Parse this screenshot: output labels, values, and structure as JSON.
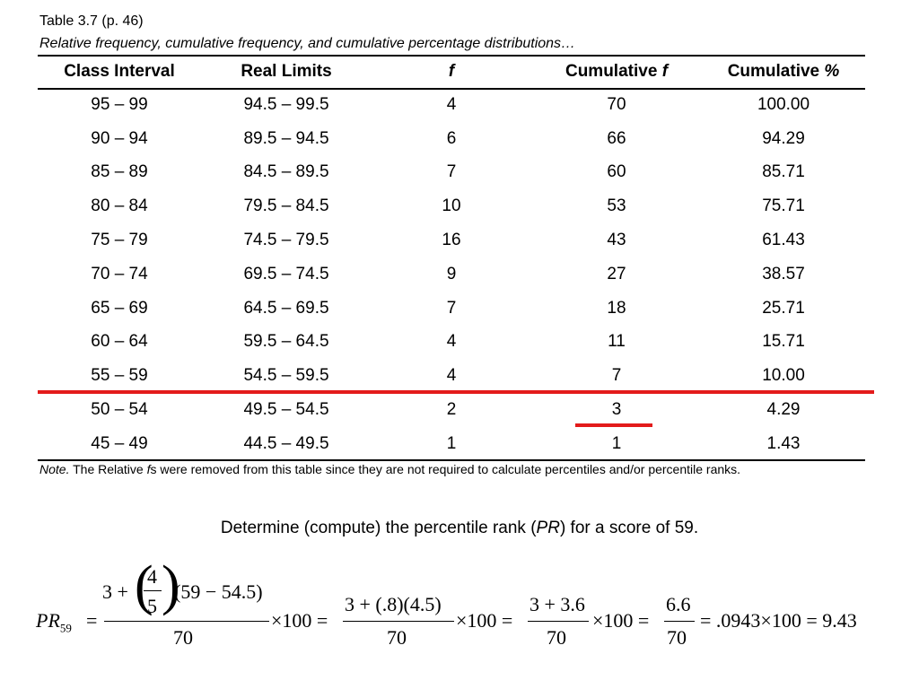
{
  "caption": {
    "title": "Table 3.7 (p. 46)",
    "subtitle": "Relative frequency, cumulative frequency, and cumulative percentage distributions…"
  },
  "table": {
    "headers": {
      "class_interval": "Class Interval",
      "real_limits": "Real Limits",
      "f": "f",
      "cumulative_f_word": "Cumulative",
      "cumulative_f_symbol": "f",
      "cumulative_pct_word": "Cumulative",
      "cumulative_pct_symbol": "%"
    },
    "rows": [
      [
        "95 – 99",
        "94.5 – 99.5",
        "4",
        "70",
        "100.00"
      ],
      [
        "90 – 94",
        "89.5 – 94.5",
        "6",
        "66",
        "94.29"
      ],
      [
        "85 – 89",
        "84.5 – 89.5",
        "7",
        "60",
        "85.71"
      ],
      [
        "80 – 84",
        "79.5 – 84.5",
        "10",
        "53",
        "75.71"
      ],
      [
        "75 – 79",
        "74.5 – 79.5",
        "16",
        "43",
        "61.43"
      ],
      [
        "70 – 74",
        "69.5 – 74.5",
        "9",
        "27",
        "38.57"
      ],
      [
        "65 – 69",
        "64.5 – 69.5",
        "7",
        "18",
        "25.71"
      ],
      [
        "60 – 64",
        "59.5 – 64.5",
        "4",
        "11",
        "15.71"
      ],
      [
        "55 – 59",
        "54.5 – 59.5",
        "4",
        "7",
        "10.00"
      ],
      [
        "50 – 54",
        "49.5 – 54.5",
        "2",
        "3",
        "4.29"
      ],
      [
        "45 – 49",
        "44.5 – 49.5",
        "1",
        "1",
        "1.43"
      ]
    ]
  },
  "highlight_color": "#e31b1b",
  "note": {
    "label": "Note.",
    "text_before": " The Relative ",
    "italic_f": "f",
    "text_after": "s were removed from this table since they are not required to calculate percentiles and/or percentile ranks."
  },
  "question": {
    "before": "Determine (compute) the percentile rank (",
    "pr": "PR",
    "after": ") for a score of 59."
  },
  "equation": {
    "lhs_symbol": "PR",
    "lhs_subscript": "59",
    "equals": "=",
    "term1": {
      "num_prefix": "3 +",
      "inner_num": "4",
      "inner_den": "5",
      "num_suffix": "(59 − 54.5)",
      "den": "70"
    },
    "times100": "×100 =",
    "term2": {
      "num": "3 + (.8)(4.5)",
      "den": "70"
    },
    "term3": {
      "num": "3 + 3.6",
      "den": "70"
    },
    "term4": {
      "num": "6.6",
      "den": "70"
    },
    "result": "= .0943×100 = 9.43"
  }
}
